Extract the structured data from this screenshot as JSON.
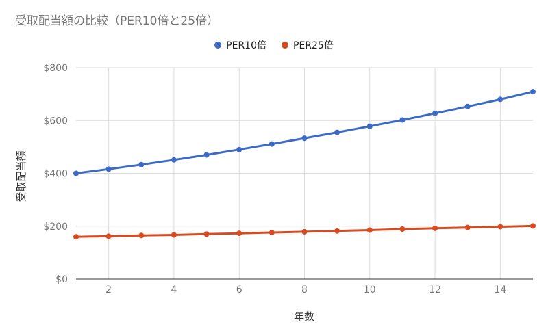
{
  "chart_data": {
    "type": "line",
    "title": "受取配当額の比較（PER10倍と25倍）",
    "xlabel": "年数",
    "ylabel": "受取配当額",
    "x": [
      1,
      2,
      3,
      4,
      5,
      6,
      7,
      8,
      9,
      10,
      11,
      12,
      13,
      14,
      15
    ],
    "xlim": [
      1,
      15
    ],
    "xticks": [
      2,
      4,
      6,
      8,
      10,
      12,
      14
    ],
    "ylim": [
      0,
      800
    ],
    "yticks": [
      0,
      200,
      400,
      600,
      800
    ],
    "ytick_labels": [
      "$0",
      "$200",
      "$400",
      "$600",
      "$800"
    ],
    "grid": true,
    "legend_position": "top",
    "series": [
      {
        "name": "PER10倍",
        "color": "#3b6ac7",
        "values": [
          400,
          416,
          433,
          451,
          470,
          490,
          511,
          533,
          555,
          578,
          602,
          627,
          653,
          680,
          709
        ]
      },
      {
        "name": "PER25倍",
        "color": "#d84a1f",
        "values": [
          160,
          162,
          165,
          167,
          170,
          173,
          176,
          179,
          182,
          185,
          189,
          192,
          195,
          198,
          201
        ]
      }
    ]
  }
}
